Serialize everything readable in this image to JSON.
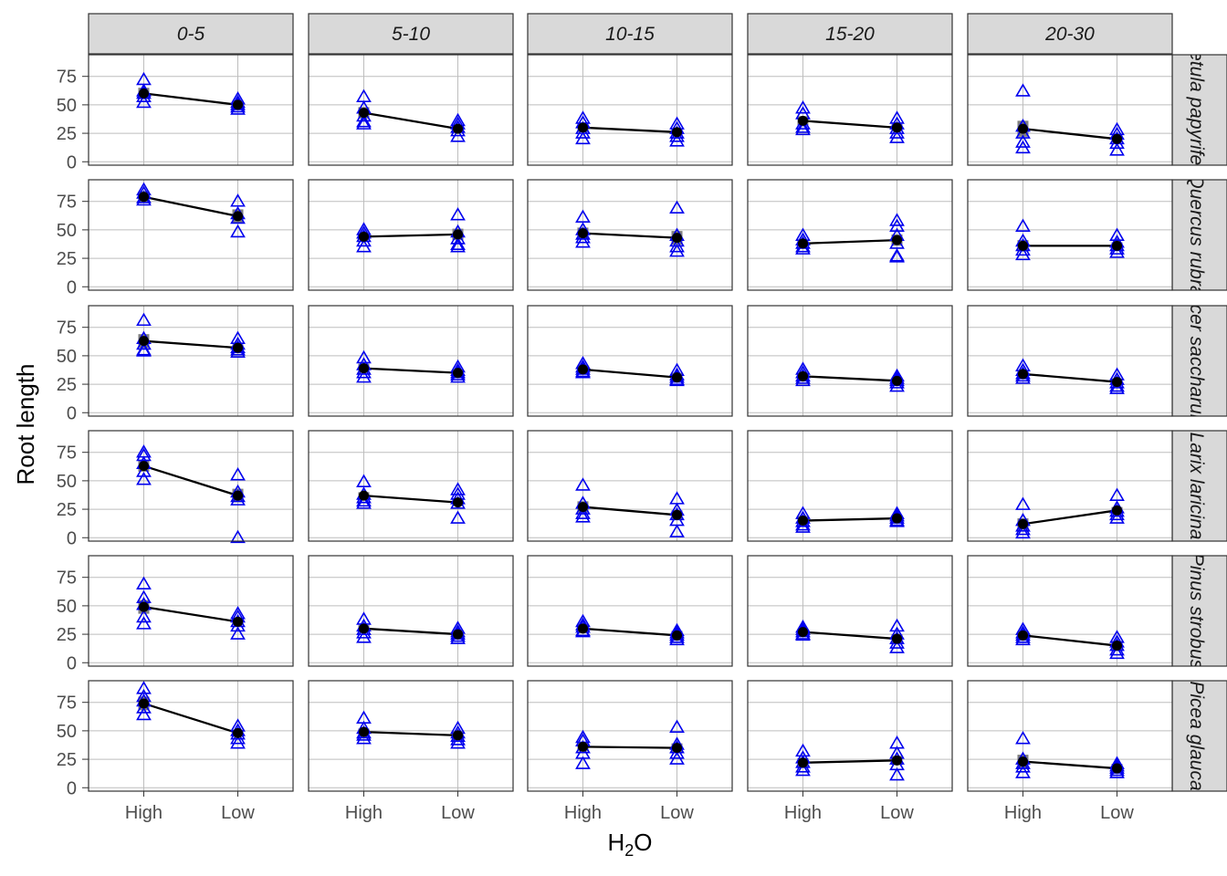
{
  "chart_data": {
    "type": "scatter",
    "xlabel_main": "H",
    "xlabel_sub": "2",
    "xlabel_tail": "O",
    "ylabel": "Root length",
    "categories": [
      "High",
      "Low"
    ],
    "columns": [
      "0-5",
      "5-10",
      "10-15",
      "15-20",
      "20-30"
    ],
    "rows": [
      "Betula papyrifera",
      "Quercus rubra",
      "Acer saccharum",
      "Larix laricina",
      "Pinus strobus",
      "Picea glauca"
    ],
    "y_ticks": [
      0,
      25,
      50,
      75
    ],
    "ylim": [
      -3,
      94
    ],
    "grid": true,
    "colors": {
      "points": "#0000ee",
      "mean": "#000000",
      "error": "#7f7f7f",
      "strip_bg": "#d9d9d9",
      "grid": "#bdbdbd"
    },
    "panels": [
      [
        {
          "mean": [
            60,
            50
          ],
          "se": [
            5,
            4
          ],
          "points": [
            [
              72,
              62,
              57,
              52,
              60
            ],
            [
              55,
              52,
              48,
              50,
              46
            ]
          ]
        },
        {
          "mean": [
            43,
            29
          ],
          "se": [
            5,
            3
          ],
          "points": [
            [
              57,
              47,
              40,
              35,
              33
            ],
            [
              36,
              30,
              27,
              22,
              33
            ]
          ]
        },
        {
          "mean": [
            30,
            26
          ],
          "se": [
            4,
            3
          ],
          "points": [
            [
              38,
              34,
              29,
              25,
              20
            ],
            [
              33,
              29,
              25,
              18,
              22
            ]
          ]
        },
        {
          "mean": [
            36,
            30
          ],
          "se": [
            4,
            3
          ],
          "points": [
            [
              47,
              42,
              33,
              28,
              30
            ],
            [
              38,
              33,
              29,
              25,
              21
            ]
          ]
        },
        {
          "mean": [
            29,
            20
          ],
          "se": [
            7,
            3
          ],
          "points": [
            [
              62,
              31,
              25,
              17,
              12
            ],
            [
              28,
              24,
              20,
              16,
              10
            ]
          ]
        }
      ],
      [
        {
          "mean": [
            79,
            62
          ],
          "se": [
            5,
            6
          ],
          "points": [
            [
              85,
              82,
              78,
              76
            ],
            [
              75,
              64,
              60,
              48
            ]
          ]
        },
        {
          "mean": [
            44,
            46
          ],
          "se": [
            3,
            5
          ],
          "points": [
            [
              50,
              47,
              44,
              40,
              35
            ],
            [
              63,
              48,
              42,
              37,
              35
            ]
          ]
        },
        {
          "mean": [
            47,
            43
          ],
          "se": [
            5,
            6
          ],
          "points": [
            [
              61,
              50,
              46,
              43,
              39
            ],
            [
              69,
              45,
              40,
              35,
              31
            ]
          ]
        },
        {
          "mean": [
            38,
            41
          ],
          "se": [
            3,
            5
          ],
          "points": [
            [
              45,
              41,
              38,
              35,
              33
            ],
            [
              58,
              53,
              45,
              38,
              27,
              26
            ]
          ]
        },
        {
          "mean": [
            36,
            36
          ],
          "se": [
            5,
            3
          ],
          "points": [
            [
              53,
              40,
              36,
              32,
              28
            ],
            [
              45,
              39,
              36,
              33,
              30
            ]
          ]
        }
      ],
      [
        {
          "mean": [
            63,
            57
          ],
          "se": [
            6,
            3
          ],
          "points": [
            [
              81,
              65,
              60,
              55,
              54
            ],
            [
              65,
              60,
              57,
              55,
              53
            ]
          ]
        },
        {
          "mean": [
            39,
            35
          ],
          "se": [
            4,
            3
          ],
          "points": [
            [
              48,
              42,
              38,
              35,
              31
            ],
            [
              40,
              37,
              35,
              33,
              31
            ]
          ]
        },
        {
          "mean": [
            38,
            31
          ],
          "se": [
            4,
            4
          ],
          "points": [
            [
              43,
              40,
              38,
              36,
              35
            ],
            [
              37,
              33,
              31,
              29,
              28
            ]
          ]
        },
        {
          "mean": [
            32,
            28
          ],
          "se": [
            3,
            3
          ],
          "points": [
            [
              38,
              35,
              32,
              30,
              28
            ],
            [
              32,
              30,
              28,
              26,
              23
            ]
          ]
        },
        {
          "mean": [
            34,
            27
          ],
          "se": [
            3,
            3
          ],
          "points": [
            [
              41,
              37,
              34,
              32,
              30
            ],
            [
              33,
              29,
              26,
              23,
              21
            ]
          ]
        }
      ],
      [
        {
          "mean": [
            63,
            37
          ],
          "se": [
            5,
            6
          ],
          "points": [
            [
              75,
              72,
              65,
              58,
              51
            ],
            [
              55,
              40,
              36,
              33,
              0
            ]
          ]
        },
        {
          "mean": [
            37,
            31
          ],
          "se": [
            3,
            3
          ],
          "points": [
            [
              49,
              38,
              35,
              32,
              30
            ],
            [
              42,
              38,
              34,
              30,
              17
            ]
          ]
        },
        {
          "mean": [
            27,
            20
          ],
          "se": [
            5,
            4
          ],
          "points": [
            [
              46,
              30,
              25,
              21,
              18
            ],
            [
              34,
              24,
              20,
              15,
              5
            ]
          ]
        },
        {
          "mean": [
            15,
            17
          ],
          "se": [
            4,
            3
          ],
          "points": [
            [
              21,
              17,
              14,
              11,
              9
            ],
            [
              21,
              19,
              17,
              15,
              14
            ]
          ]
        },
        {
          "mean": [
            12,
            24
          ],
          "se": [
            5,
            3
          ],
          "points": [
            [
              29,
              15,
              10,
              7,
              4
            ],
            [
              37,
              26,
              23,
              20,
              17
            ]
          ]
        }
      ],
      [
        {
          "mean": [
            49,
            36
          ],
          "se": [
            6,
            3
          ],
          "points": [
            [
              69,
              57,
              51,
              40,
              34
            ],
            [
              43,
              40,
              36,
              32,
              25
            ]
          ]
        },
        {
          "mean": [
            30,
            25
          ],
          "se": [
            3,
            4
          ],
          "points": [
            [
              38,
              32,
              29,
              26,
              22
            ],
            [
              30,
              27,
              25,
              23,
              21
            ]
          ]
        },
        {
          "mean": [
            30,
            24
          ],
          "se": [
            4,
            4
          ],
          "points": [
            [
              36,
              33,
              31,
              28,
              27
            ],
            [
              28,
              26,
              24,
              22,
              20
            ]
          ]
        },
        {
          "mean": [
            27,
            21
          ],
          "se": [
            3,
            4
          ],
          "points": [
            [
              31,
              29,
              27,
              25,
              24
            ],
            [
              32,
              25,
              21,
              17,
              13
            ]
          ]
        },
        {
          "mean": [
            24,
            15
          ],
          "se": [
            4,
            4
          ],
          "points": [
            [
              29,
              26,
              24,
              22,
              20
            ],
            [
              22,
              18,
              15,
              11,
              8
            ]
          ]
        }
      ],
      [
        {
          "mean": [
            74,
            48
          ],
          "se": [
            6,
            3
          ],
          "points": [
            [
              87,
              80,
              76,
              70,
              64
            ],
            [
              54,
              50,
              47,
              43,
              39
            ]
          ]
        },
        {
          "mean": [
            49,
            46
          ],
          "se": [
            3,
            4
          ],
          "points": [
            [
              61,
              52,
              48,
              46,
              43
            ],
            [
              52,
              48,
              45,
              42,
              39
            ]
          ]
        },
        {
          "mean": [
            36,
            35
          ],
          "se": [
            4,
            4
          ],
          "points": [
            [
              44,
              41,
              35,
              30,
              21
            ],
            [
              53,
              38,
              35,
              30,
              25
            ]
          ]
        },
        {
          "mean": [
            22,
            24
          ],
          "se": [
            4,
            4
          ],
          "points": [
            [
              32,
              26,
              22,
              18,
              15
            ],
            [
              39,
              30,
              25,
              20,
              11
            ]
          ]
        },
        {
          "mean": [
            23,
            17
          ],
          "se": [
            6,
            4
          ],
          "points": [
            [
              43,
              25,
              21,
              18,
              13
            ],
            [
              21,
              19,
              17,
              15,
              13
            ]
          ]
        }
      ]
    ]
  }
}
